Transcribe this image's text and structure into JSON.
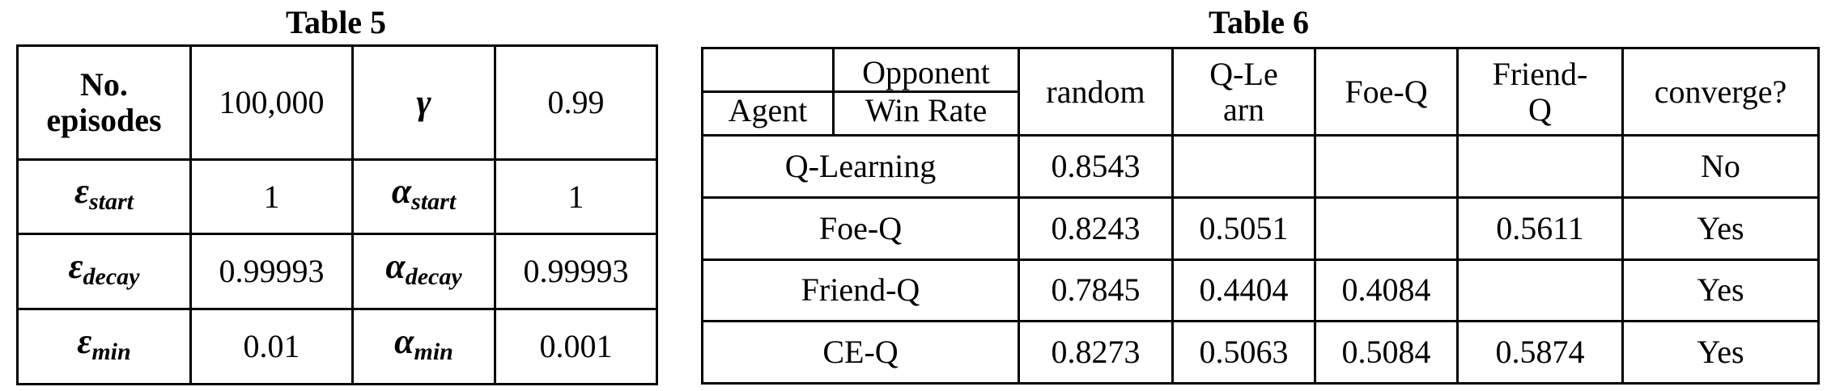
{
  "table5": {
    "caption": "Table 5",
    "rows": [
      {
        "k1": "No. episodes",
        "v1": "100,000",
        "k2": "γ",
        "v2": "0.99"
      },
      {
        "k1_base": "ε",
        "k1_sub": "start",
        "v1": "1",
        "k2_base": "α",
        "k2_sub": "start",
        "v2": "1"
      },
      {
        "k1_base": "ε",
        "k1_sub": "decay",
        "v1": "0.99993",
        "k2_base": "α",
        "k2_sub": "decay",
        "v2": "0.99993"
      },
      {
        "k1_base": "ε",
        "k1_sub": "min",
        "v1": "0.01",
        "k2_base": "α",
        "k2_sub": "min",
        "v2": "0.001"
      }
    ]
  },
  "table6": {
    "caption": "Table 6",
    "header": {
      "opponent": "Opponent",
      "win_rate": "Win Rate",
      "agent": "Agent",
      "columns": [
        "random",
        "Q-Learn",
        "Foe-Q",
        "Friend-Q",
        "converge?"
      ]
    },
    "rows": [
      {
        "agent": "Q-Learning",
        "random": "0.8543",
        "qlearn": "",
        "foeq": "",
        "friendq": "",
        "converge": "No"
      },
      {
        "agent": "Foe-Q",
        "random": "0.8243",
        "qlearn": "0.5051",
        "foeq": "",
        "friendq": "0.5611",
        "converge": "Yes"
      },
      {
        "agent": "Friend-Q",
        "random": "0.7845",
        "qlearn": "0.4404",
        "foeq": "0.4084",
        "friendq": "",
        "converge": "Yes"
      },
      {
        "agent": "CE-Q",
        "random": "0.8273",
        "qlearn": "0.5063",
        "foeq": "0.5084",
        "friendq": "0.5874",
        "converge": "Yes"
      }
    ]
  }
}
